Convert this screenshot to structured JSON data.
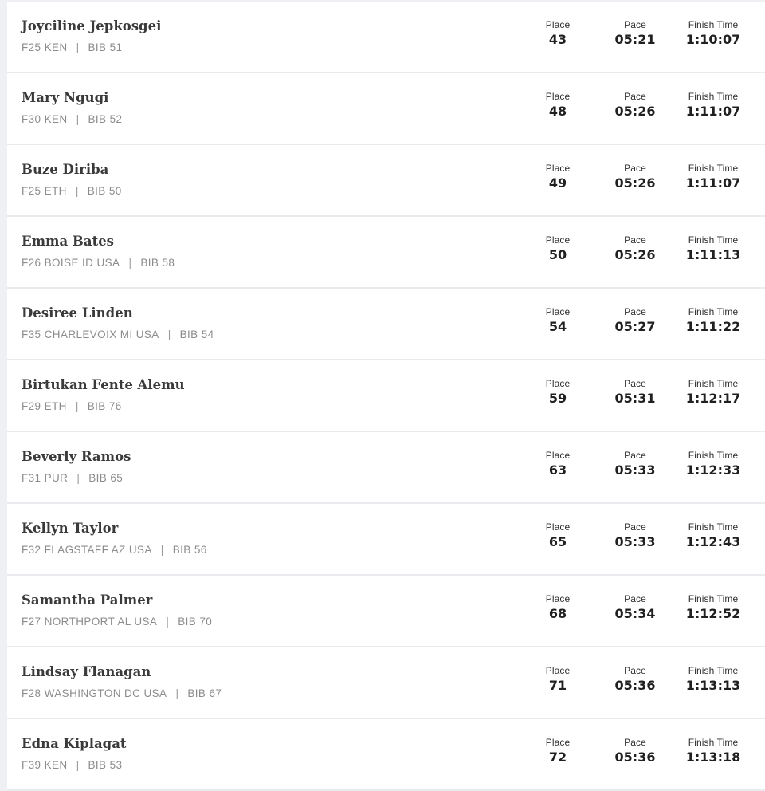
{
  "labels": {
    "place": "Place",
    "pace": "Pace",
    "finish_time": "Finish Time"
  },
  "runners": [
    {
      "name": "Joyciline Jepkosgei",
      "details": "F25  KEN",
      "bib": "BIB 51",
      "place": "43",
      "pace": "05:21",
      "finish_time": "1:10:07"
    },
    {
      "name": "Mary Ngugi",
      "details": "F30  KEN",
      "bib": "BIB 52",
      "place": "48",
      "pace": "05:26",
      "finish_time": "1:11:07"
    },
    {
      "name": "Buze Diriba",
      "details": "F25  ETH",
      "bib": "BIB 50",
      "place": "49",
      "pace": "05:26",
      "finish_time": "1:11:07"
    },
    {
      "name": "Emma Bates",
      "details": "F26  BOISE  ID  USA",
      "bib": "BIB 58",
      "place": "50",
      "pace": "05:26",
      "finish_time": "1:11:13"
    },
    {
      "name": "Desiree Linden",
      "details": "F35  CHARLEVOIX  MI  USA",
      "bib": "BIB 54",
      "place": "54",
      "pace": "05:27",
      "finish_time": "1:11:22"
    },
    {
      "name": "Birtukan Fente Alemu",
      "details": "F29  ETH",
      "bib": "BIB 76",
      "place": "59",
      "pace": "05:31",
      "finish_time": "1:12:17"
    },
    {
      "name": "Beverly Ramos",
      "details": "F31  PUR",
      "bib": "BIB 65",
      "place": "63",
      "pace": "05:33",
      "finish_time": "1:12:33"
    },
    {
      "name": "Kellyn Taylor",
      "details": "F32  FLAGSTAFF  AZ  USA",
      "bib": "BIB 56",
      "place": "65",
      "pace": "05:33",
      "finish_time": "1:12:43"
    },
    {
      "name": "Samantha Palmer",
      "details": "F27  NORTHPORT  AL  USA",
      "bib": "BIB 70",
      "place": "68",
      "pace": "05:34",
      "finish_time": "1:12:52"
    },
    {
      "name": "Lindsay Flanagan",
      "details": "F28  WASHINGTON  DC  USA",
      "bib": "BIB 67",
      "place": "71",
      "pace": "05:36",
      "finish_time": "1:13:13"
    },
    {
      "name": "Edna Kiplagat",
      "details": "F39  KEN",
      "bib": "BIB 53",
      "place": "72",
      "pace": "05:36",
      "finish_time": "1:13:18"
    }
  ]
}
